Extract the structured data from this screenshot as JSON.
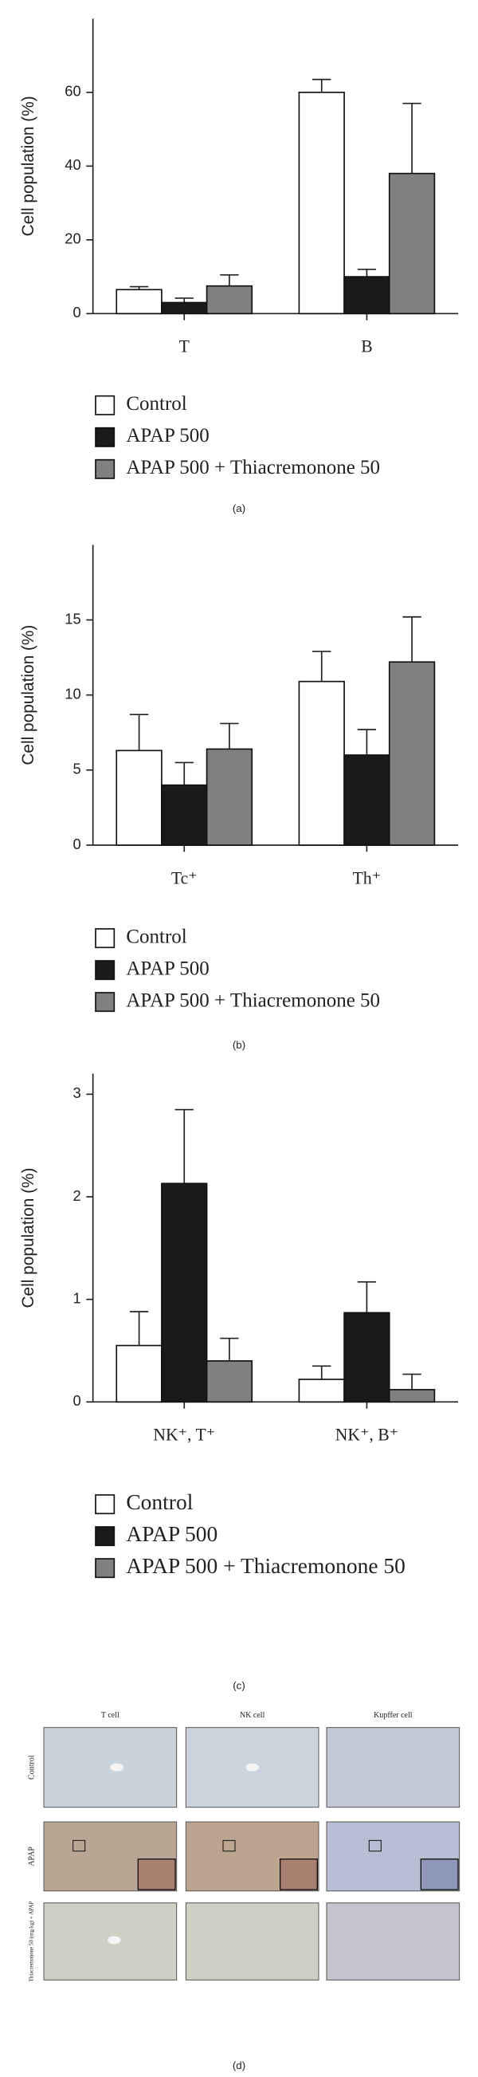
{
  "chart_data": [
    {
      "type": "bar",
      "y_label": "Cell population (%)",
      "panel_label": "(a)",
      "categories": [
        "T",
        "B"
      ],
      "ylim": [
        0,
        80
      ],
      "yticks": [
        0,
        20,
        40,
        60
      ],
      "series": [
        {
          "name": "Control",
          "color": "#ffffff",
          "values": [
            6.5,
            60
          ],
          "errors": [
            0.8,
            3.5
          ]
        },
        {
          "name": "APAP 500",
          "color": "#1a1a1a",
          "values": [
            3,
            10
          ],
          "errors": [
            1.2,
            2
          ]
        },
        {
          "name": "APAP 500 + Thiacremonone 50",
          "color": "#808080",
          "values": [
            7.5,
            38
          ],
          "errors": [
            3,
            19
          ]
        }
      ]
    },
    {
      "type": "bar",
      "y_label": "Cell population (%)",
      "panel_label": "(b)",
      "categories": [
        "Tc⁺",
        "Th⁺"
      ],
      "ylim": [
        0,
        20
      ],
      "yticks": [
        0,
        5,
        10,
        15
      ],
      "series": [
        {
          "name": "Control",
          "color": "#ffffff",
          "values": [
            6.3,
            10.9
          ],
          "errors": [
            2.4,
            2
          ]
        },
        {
          "name": "APAP 500",
          "color": "#1a1a1a",
          "values": [
            4,
            6
          ],
          "errors": [
            1.5,
            1.7
          ]
        },
        {
          "name": "APAP 500 + Thiacremonone 50",
          "color": "#808080",
          "values": [
            6.4,
            12.2
          ],
          "errors": [
            1.7,
            3
          ]
        }
      ]
    },
    {
      "type": "bar",
      "y_label": "Cell population (%)",
      "panel_label": "(c)",
      "categories": [
        "NK⁺, T⁺",
        "NK⁺, B⁺"
      ],
      "ylim": [
        0,
        3.2
      ],
      "yticks": [
        0,
        1,
        2,
        3
      ],
      "series": [
        {
          "name": "Control",
          "color": "#ffffff",
          "values": [
            0.55,
            0.22
          ],
          "errors": [
            0.33,
            0.13
          ]
        },
        {
          "name": "APAP 500",
          "color": "#1a1a1a",
          "values": [
            2.13,
            0.87
          ],
          "errors": [
            0.72,
            0.3
          ]
        },
        {
          "name": "APAP 500 + Thiacremonone 50",
          "color": "#808080",
          "values": [
            0.4,
            0.12
          ],
          "errors": [
            0.22,
            0.15
          ]
        }
      ]
    }
  ],
  "panel_d": {
    "columns": [
      "T cell",
      "NK cell",
      "Kupffer cell"
    ],
    "rows": [
      "Control",
      "APAP",
      "Thiacremonone 50 (mg/kg) + APAP"
    ],
    "panel_label": "(d)"
  }
}
